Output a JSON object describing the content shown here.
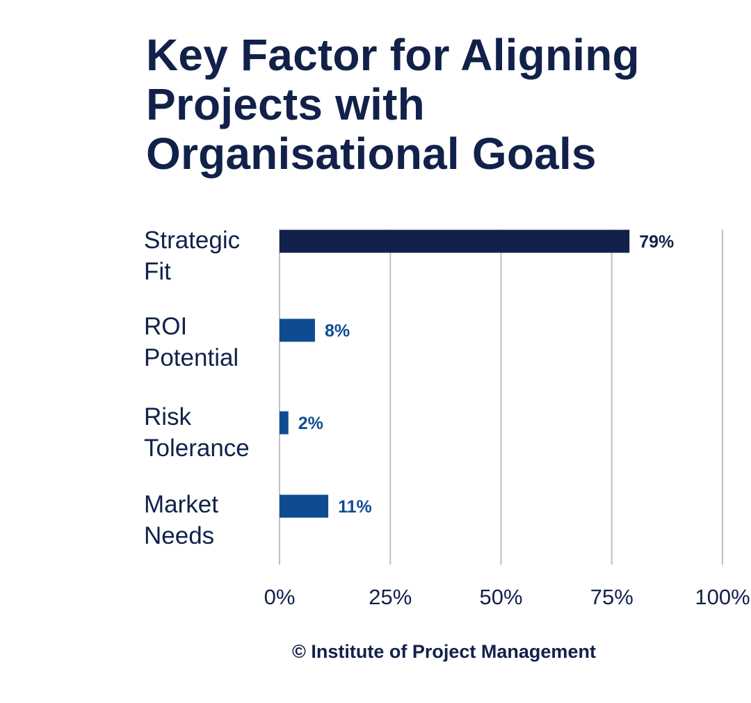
{
  "chart_data": {
    "type": "bar",
    "orientation": "horizontal",
    "title_lines": [
      "Key Factor for Aligning",
      "Projects with",
      "Organisational Goals"
    ],
    "categories": [
      [
        "Strategic",
        "Fit"
      ],
      [
        "ROI",
        "Potential"
      ],
      [
        "Risk",
        "Tolerance"
      ],
      [
        "Market",
        "Needs"
      ]
    ],
    "values": [
      79,
      8,
      2,
      11
    ],
    "data_labels": [
      "79%",
      "8%",
      "2%",
      "11%"
    ],
    "xlim": [
      0,
      100
    ],
    "x_ticks": [
      0,
      25,
      50,
      75,
      100
    ],
    "x_tick_labels": [
      "0%",
      "25%",
      "50%",
      "75%",
      "100%"
    ],
    "grid": "vertical",
    "legend": "none",
    "colors": {
      "primary_bar": "#11214a",
      "secondary_bar": "#0e4c92",
      "primary_label": "#11214a",
      "secondary_label": "#0e4c92",
      "grid": "#b9c0c9"
    }
  },
  "credit": "© Institute of Project Management"
}
